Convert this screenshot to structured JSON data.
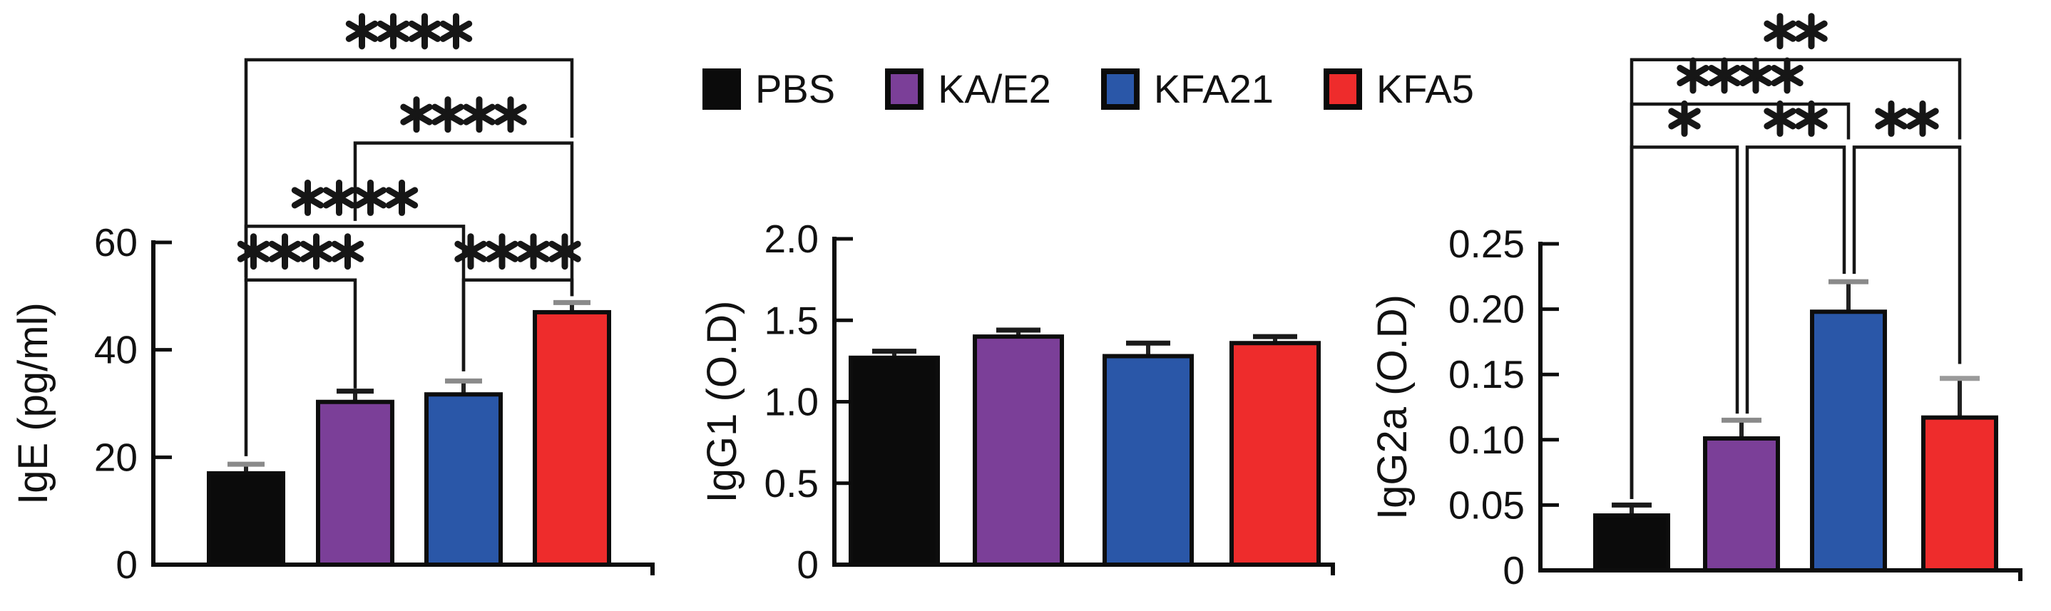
{
  "figure": {
    "background": "#ffffff",
    "groups": [
      "PBS",
      "KA/E2",
      "KFA21",
      "KFA5"
    ],
    "group_colors": {
      "PBS": "#0b0b0b",
      "KA/E2": "#7b3f98",
      "KFA21": "#2a57a8",
      "KFA5": "#ee2c2c"
    }
  },
  "legend": {
    "position": "top-center",
    "items": [
      {
        "label": "PBS",
        "color": "#0b0b0b"
      },
      {
        "label": "KA/E2",
        "color": "#7b3f98"
      },
      {
        "label": "KFA21",
        "color": "#2a57a8"
      },
      {
        "label": "KFA5",
        "color": "#ee2c2c"
      }
    ]
  },
  "chart_data": [
    {
      "id": "ige",
      "type": "bar",
      "title": "",
      "xlabel": "",
      "ylabel": "IgE (pg/ml)",
      "ylim": [
        0,
        60
      ],
      "grid": false,
      "yticks": [
        {
          "value": 0,
          "label": "0"
        },
        {
          "value": 20,
          "label": "20"
        },
        {
          "value": 40,
          "label": "40"
        },
        {
          "value": 60,
          "label": "60"
        }
      ],
      "categories": [
        "PBS",
        "KA/E2",
        "KFA21",
        "KFA5"
      ],
      "values": [
        17,
        30.3,
        31.7,
        47
      ],
      "errors": [
        1.7,
        2.0,
        2.5,
        1.8
      ],
      "bar_colors": [
        "#0b0b0b",
        "#7b3f98",
        "#2a57a8",
        "#ee2c2c"
      ],
      "error_cap_colors": [
        "#8a8a8a",
        "#1a1a1a",
        "#8a8a8a",
        "#8a8a8a"
      ],
      "significance": [
        {
          "groups": [
            "PBS",
            "KA/E2"
          ],
          "label": "****",
          "height": 53,
          "drop1_to": 20.2,
          "drop2_to": 32.8
        },
        {
          "groups": [
            "KFA21",
            "KFA5"
          ],
          "label": "****",
          "height": 53,
          "drop1_to": 36,
          "drop2_to": 50
        },
        {
          "groups": [
            "PBS",
            "KFA21"
          ],
          "label": "****",
          "height": 63,
          "drop1_to": 53.5,
          "drop2_to": 36
        },
        {
          "groups": [
            "KA/E2",
            "KFA5"
          ],
          "label": "****",
          "height": 78.5,
          "drop1_to": 64,
          "drop2_to": 50
        },
        {
          "groups": [
            "PBS",
            "KFA5"
          ],
          "label": "****",
          "height": 94,
          "drop1_to": 52.7,
          "drop2_to": 79.5
        }
      ]
    },
    {
      "id": "igg1",
      "type": "bar",
      "title": "",
      "xlabel": "",
      "ylabel": "IgG1 (O.D)",
      "ylim": [
        0,
        2.0
      ],
      "grid": false,
      "yticks": [
        {
          "value": 0,
          "label": "0"
        },
        {
          "value": 0.5,
          "label": "0.5"
        },
        {
          "value": 1.0,
          "label": "1.0"
        },
        {
          "value": 1.5,
          "label": "1.5"
        },
        {
          "value": 2.0,
          "label": "2.0"
        }
      ],
      "categories": [
        "PBS",
        "KA/E2",
        "KFA21",
        "KFA5"
      ],
      "values": [
        1.27,
        1.4,
        1.28,
        1.36
      ],
      "errors": [
        0.04,
        0.04,
        0.08,
        0.04
      ],
      "bar_colors": [
        "#0b0b0b",
        "#7b3f98",
        "#2a57a8",
        "#ee2c2c"
      ],
      "error_cap_colors": [
        "#1a1a1a",
        "#1a1a1a",
        "#1a1a1a",
        "#1a1a1a"
      ],
      "significance": []
    },
    {
      "id": "igg2a",
      "type": "bar",
      "title": "",
      "xlabel": "",
      "ylabel": "IgG2a (O.D)",
      "ylim": [
        0,
        0.25
      ],
      "grid": false,
      "yticks": [
        {
          "value": 0,
          "label": "0"
        },
        {
          "value": 0.05,
          "label": "0.05"
        },
        {
          "value": 0.1,
          "label": "0.10"
        },
        {
          "value": 0.15,
          "label": "0.15"
        },
        {
          "value": 0.2,
          "label": "0.20"
        },
        {
          "value": 0.25,
          "label": "0.25"
        }
      ],
      "categories": [
        "PBS",
        "KA/E2",
        "KFA21",
        "KFA5"
      ],
      "values": [
        0.042,
        0.101,
        0.198,
        0.117
      ],
      "errors": [
        0.008,
        0.014,
        0.023,
        0.03
      ],
      "bar_colors": [
        "#0b0b0b",
        "#7b3f98",
        "#2a57a8",
        "#ee2c2c"
      ],
      "error_cap_colors": [
        "#1a1a1a",
        "#8a8a8a",
        "#8a8a8a",
        "#9a9a9a"
      ],
      "significance": [
        {
          "groups": [
            "PBS",
            "KA/E2"
          ],
          "label": "*",
          "height": 0.324,
          "drop1_to": 0.0546,
          "drop2_to": 0.12,
          "dx2": -6
        },
        {
          "groups": [
            "KA/E2",
            "KFA21"
          ],
          "label": "**",
          "height": 0.324,
          "drop1_to": 0.12,
          "drop2_to": 0.227,
          "dx1": 8,
          "dx2": -6
        },
        {
          "groups": [
            "KFA21",
            "KFA5"
          ],
          "label": "**",
          "height": 0.324,
          "drop1_to": 0.227,
          "drop2_to": 0.158,
          "dx1": 8
        },
        {
          "groups": [
            "PBS",
            "KFA21"
          ],
          "label": "****",
          "height": 0.357,
          "drop1_to": 0.0546,
          "drop2_to": 0.33
        },
        {
          "groups": [
            "PBS",
            "KFA5"
          ],
          "label": "**",
          "height": 0.391,
          "drop1_to": 0.0546,
          "drop2_to": 0.33
        }
      ]
    }
  ]
}
